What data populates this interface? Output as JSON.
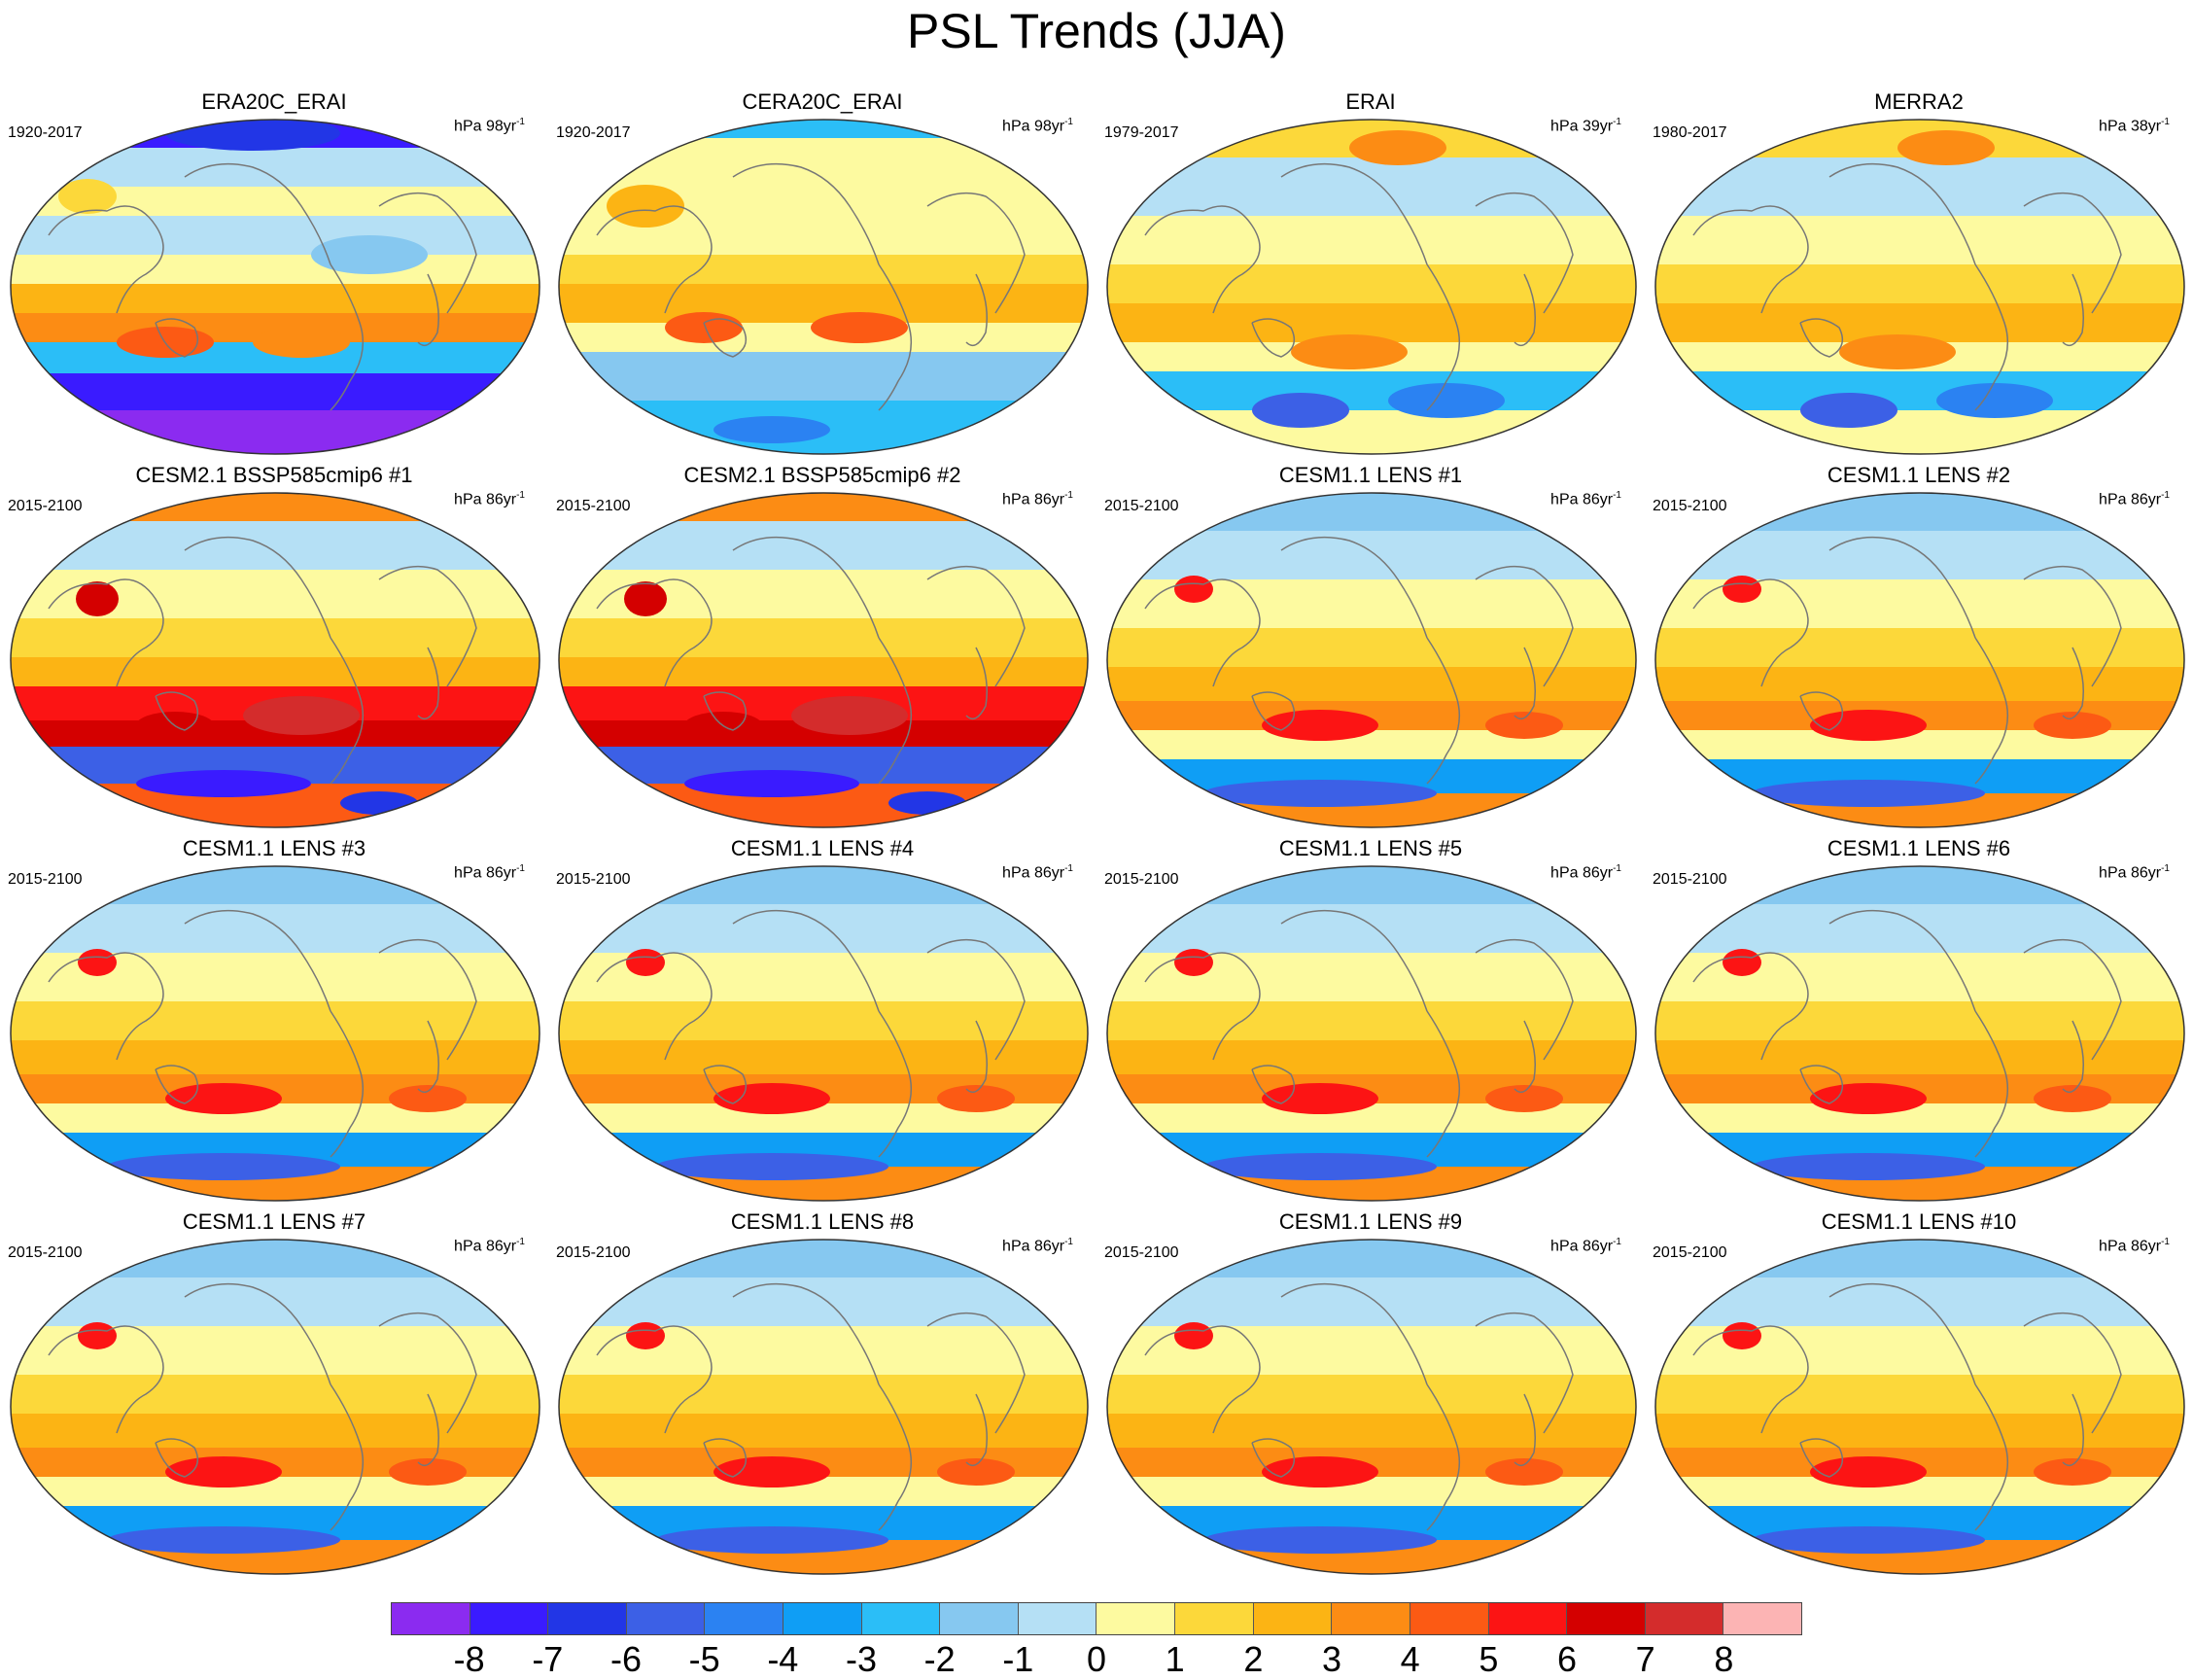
{
  "title": "PSL Trends (JJA)",
  "colorbar": {
    "colors": [
      "#8b2bf0",
      "#3a1bff",
      "#2236e6",
      "#3c60e6",
      "#2b82f2",
      "#0f9ef5",
      "#2bbef7",
      "#86c8f0",
      "#b5e0f5",
      "#fdfaa0",
      "#fcd83a",
      "#fcb414",
      "#fc8c14",
      "#fc5a14",
      "#fc1414",
      "#d40000",
      "#d42c2c",
      "#fcb4b4"
    ],
    "labels": [
      "-8",
      "-7",
      "-6",
      "-5",
      "-4",
      "-3",
      "-2",
      "-1",
      "0",
      "1",
      "2",
      "3",
      "4",
      "5",
      "6",
      "7",
      "8"
    ]
  },
  "panels": [
    {
      "title": "ERA20C_ERAI",
      "years": "1920-2017",
      "units": "hPa 98yr",
      "units_exp": "-1",
      "palette": "obs_a"
    },
    {
      "title": "CERA20C_ERAI",
      "years": "1920-2017",
      "units": "hPa 98yr",
      "units_exp": "-1",
      "palette": "obs_b"
    },
    {
      "title": "ERAI",
      "years": "1979-2017",
      "units": "hPa 39yr",
      "units_exp": "-1",
      "palette": "obs_c"
    },
    {
      "title": "MERRA2",
      "years": "1980-2017",
      "units": "hPa 38yr",
      "units_exp": "-1",
      "palette": "obs_c"
    },
    {
      "title": "CESM2.1 BSSP585cmip6 #1",
      "years": "2015-2100",
      "units": "hPa 86yr",
      "units_exp": "-1",
      "palette": "strong"
    },
    {
      "title": "CESM2.1 BSSP585cmip6 #2",
      "years": "2015-2100",
      "units": "hPa 86yr",
      "units_exp": "-1",
      "palette": "strong"
    },
    {
      "title": "CESM1.1 LENS #1",
      "years": "2015-2100",
      "units": "hPa 86yr",
      "units_exp": "-1",
      "palette": "model"
    },
    {
      "title": "CESM1.1 LENS #2",
      "years": "2015-2100",
      "units": "hPa 86yr",
      "units_exp": "-1",
      "palette": "model"
    },
    {
      "title": "CESM1.1 LENS #3",
      "years": "2015-2100",
      "units": "hPa 86yr",
      "units_exp": "-1",
      "palette": "model"
    },
    {
      "title": "CESM1.1 LENS #4",
      "years": "2015-2100",
      "units": "hPa 86yr",
      "units_exp": "-1",
      "palette": "model"
    },
    {
      "title": "CESM1.1 LENS #5",
      "years": "2015-2100",
      "units": "hPa 86yr",
      "units_exp": "-1",
      "palette": "model"
    },
    {
      "title": "CESM1.1 LENS #6",
      "years": "2015-2100",
      "units": "hPa 86yr",
      "units_exp": "-1",
      "palette": "model"
    },
    {
      "title": "CESM1.1 LENS #7",
      "years": "2015-2100",
      "units": "hPa 86yr",
      "units_exp": "-1",
      "palette": "model"
    },
    {
      "title": "CESM1.1 LENS #8",
      "years": "2015-2100",
      "units": "hPa 86yr",
      "units_exp": "-1",
      "palette": "model"
    },
    {
      "title": "CESM1.1 LENS #9",
      "years": "2015-2100",
      "units": "hPa 86yr",
      "units_exp": "-1",
      "palette": "model"
    },
    {
      "title": "CESM1.1 LENS #10",
      "years": "2015-2100",
      "units": "hPa 86yr",
      "units_exp": "-1",
      "palette": "model"
    }
  ]
}
